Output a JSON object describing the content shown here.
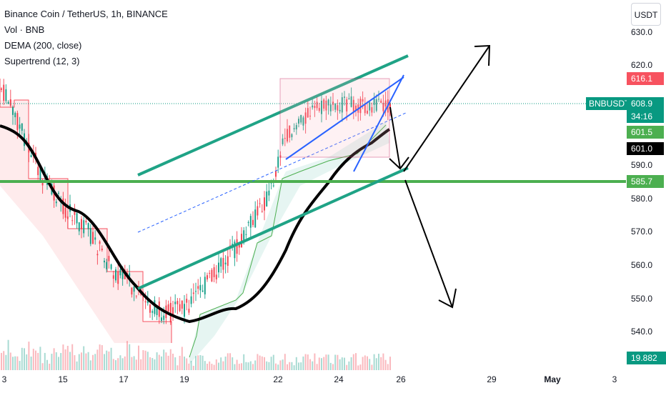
{
  "legend": {
    "title": "Binance Coin / TetherUS, 1h, BINANCE",
    "volume": "Vol · BNB",
    "dema": "DEMA (200, close)",
    "supertrend": "Supertrend (12, 3)"
  },
  "currency_button": "USDT",
  "price_axis": {
    "ticks": [
      "630.0",
      "620.0",
      "590.0",
      "580.0",
      "570.0",
      "560.0",
      "550.0",
      "540.0"
    ]
  },
  "time_axis": {
    "ticks": [
      "3",
      "15",
      "17",
      "19",
      "22",
      "24",
      "26",
      "29",
      "May",
      "3"
    ]
  },
  "tags": {
    "high": "616.1",
    "symbol": "BNBUSDT",
    "last_price": "608.9",
    "countdown": "34:16",
    "supertrend": "601.5",
    "dema": "601.0",
    "level": "585.7",
    "volume": "19.882 K"
  },
  "colors": {
    "up": "#089981",
    "down": "#f23645",
    "channel": "#1fa386",
    "level_line": "#4caf50",
    "dema_line": "#000000",
    "wedge": "#2962ff",
    "box": "#f8b4bf",
    "arrow": "#000000"
  },
  "icons": [
    "up-arrow-icon",
    "down-arrow-icon"
  ]
}
